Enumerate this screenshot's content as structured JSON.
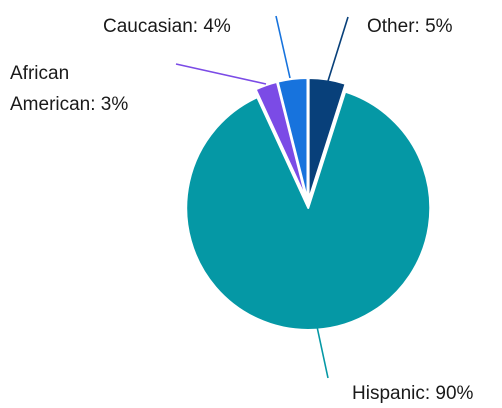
{
  "chart_data": {
    "type": "pie",
    "slices": [
      {
        "label": "Other",
        "value": 5,
        "display": "Other: 5%",
        "color": "#08407a"
      },
      {
        "label": "Hispanic",
        "value": 90,
        "display": "Hispanic: 90%",
        "color": "#0598a5"
      },
      {
        "label": "African American",
        "value": 3,
        "display_lines": [
          "African",
          "American: 3%"
        ],
        "color": "#7b4be6"
      },
      {
        "label": "Caucasian",
        "value": 4,
        "display": "Caucasian: 4%",
        "color": "#1773dd"
      }
    ],
    "start": "top, clockwise",
    "units": "%"
  }
}
